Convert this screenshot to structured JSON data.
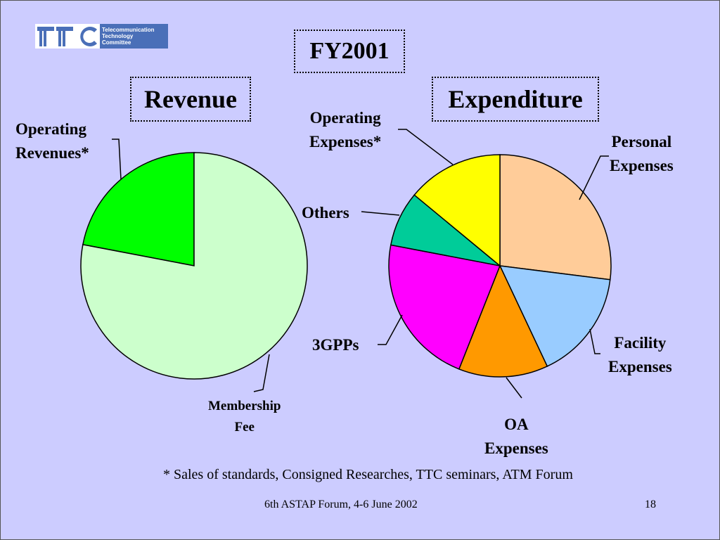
{
  "logo": {
    "lines": [
      "Telecommunication",
      "Technology",
      "Committee"
    ]
  },
  "title": "FY2001",
  "chart_data": [
    {
      "type": "pie",
      "title": "Revenue",
      "slices": [
        {
          "label": "Operating Revenues*",
          "value": 22,
          "color": "#00ff00"
        },
        {
          "label": "Membership Fee",
          "value": 78,
          "color": "#ccffcc"
        }
      ]
    },
    {
      "type": "pie",
      "title": "Expenditure",
      "slices": [
        {
          "label": "Personal Expenses",
          "value": 27,
          "color": "#ffcc99"
        },
        {
          "label": "Facility Expenses",
          "value": 16,
          "color": "#99ccff"
        },
        {
          "label": "OA Expenses",
          "value": 13,
          "color": "#ff9900"
        },
        {
          "label": "3GPPs",
          "value": 22,
          "color": "#ff00ff"
        },
        {
          "label": "Others",
          "value": 8,
          "color": "#00cc99"
        },
        {
          "label": "Operating Expenses*",
          "value": 14,
          "color": "#ffff00"
        }
      ]
    }
  ],
  "labels": {
    "op_rev_1": "Operating",
    "op_rev_2": "Revenues*",
    "member_1": "Membership",
    "member_2": "Fee",
    "op_exp_1": "Operating",
    "op_exp_2": "Expenses*",
    "personal_1": "Personal",
    "personal_2": "Expenses",
    "others": "Others",
    "gpps": "3GPPs",
    "facility_1": "Facility",
    "facility_2": "Expenses",
    "oa_1": "OA",
    "oa_2": "Expenses"
  },
  "footnote": "* Sales of standards, Consigned Researches, TTC seminars, ATM Forum",
  "footer": "6th ASTAP Forum, 4-6 June 2002",
  "page_number": "18",
  "colors": {
    "background": "#ccccff",
    "logo_blue": "#4a6fb8"
  }
}
